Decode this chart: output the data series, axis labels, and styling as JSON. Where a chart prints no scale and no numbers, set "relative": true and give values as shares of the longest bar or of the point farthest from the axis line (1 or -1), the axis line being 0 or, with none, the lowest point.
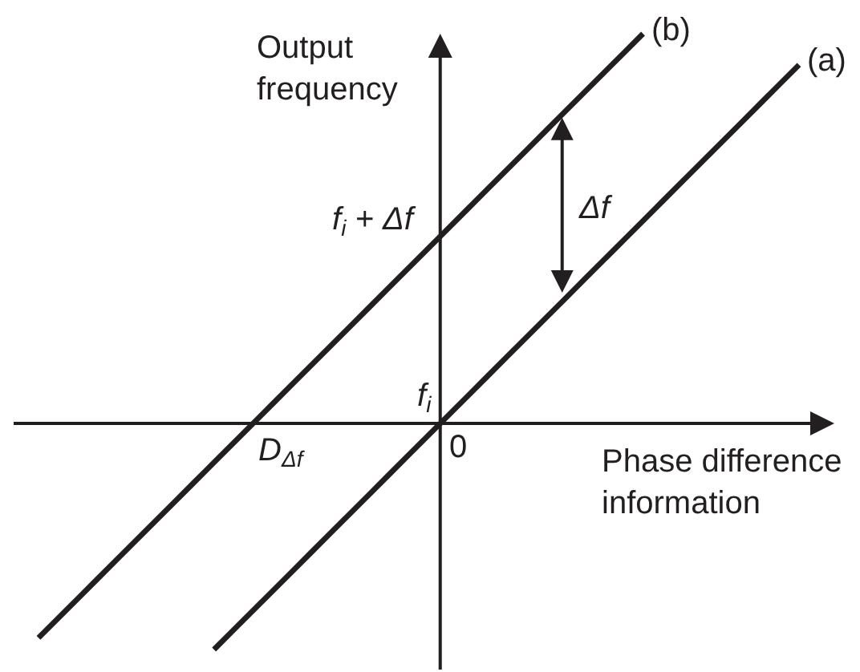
{
  "chart_data": {
    "type": "line",
    "relative": true,
    "xlabel": "Phase difference information",
    "ylabel": "Output frequency",
    "legend": false,
    "categories": [
      null,
      null,
      null,
      null,
      null,
      null,
      null,
      null,
      null,
      null,
      null,
      null,
      null,
      null,
      null,
      null,
      null,
      null,
      null,
      null,
      null,
      null,
      null,
      null,
      null,
      null,
      null,
      null,
      null,
      null,
      null,
      null,
      null,
      null,
      null,
      null,
      null,
      null,
      null,
      null
    ],
    "series": [
      {
        "name": "(a)",
        "color": "#231f20",
        "values": [
          null,
          null,
          null,
          null,
          null,
          null,
          null,
          null,
          null,
          -0.58,
          -0.53,
          -0.48,
          -0.43,
          -0.38,
          -0.33,
          -0.28,
          -0.23,
          -0.18,
          -0.13,
          -0.08,
          -0.03,
          0.02,
          0.07,
          0.12,
          0.17,
          0.22,
          0.27,
          0.32,
          0.37,
          0.42,
          0.47,
          0.52,
          0.57,
          0.62,
          0.67,
          0.72,
          0.77,
          0.82,
          0.87,
          0.92
        ]
      },
      {
        "name": "(b)",
        "color": "#231f20",
        "values": [
          -0.55,
          -0.5,
          -0.45,
          -0.4,
          -0.35,
          -0.3,
          -0.25,
          -0.2,
          -0.15,
          -0.1,
          -0.05,
          0,
          0.05,
          0.1,
          0.15,
          0.2,
          0.25,
          0.3,
          0.35,
          0.4,
          0.45,
          0.5,
          0.55,
          0.6,
          0.65,
          0.7,
          0.75,
          0.8,
          0.85,
          0.9,
          0.95,
          1.0,
          null,
          null,
          null,
          null,
          null,
          null,
          null,
          null
        ]
      }
    ],
    "annotations": [
      "f$_{i}$ + Δf",
      "Δf",
      "f$_{i}$",
      "0",
      "D$_{Δf}$"
    ]
  }
}
